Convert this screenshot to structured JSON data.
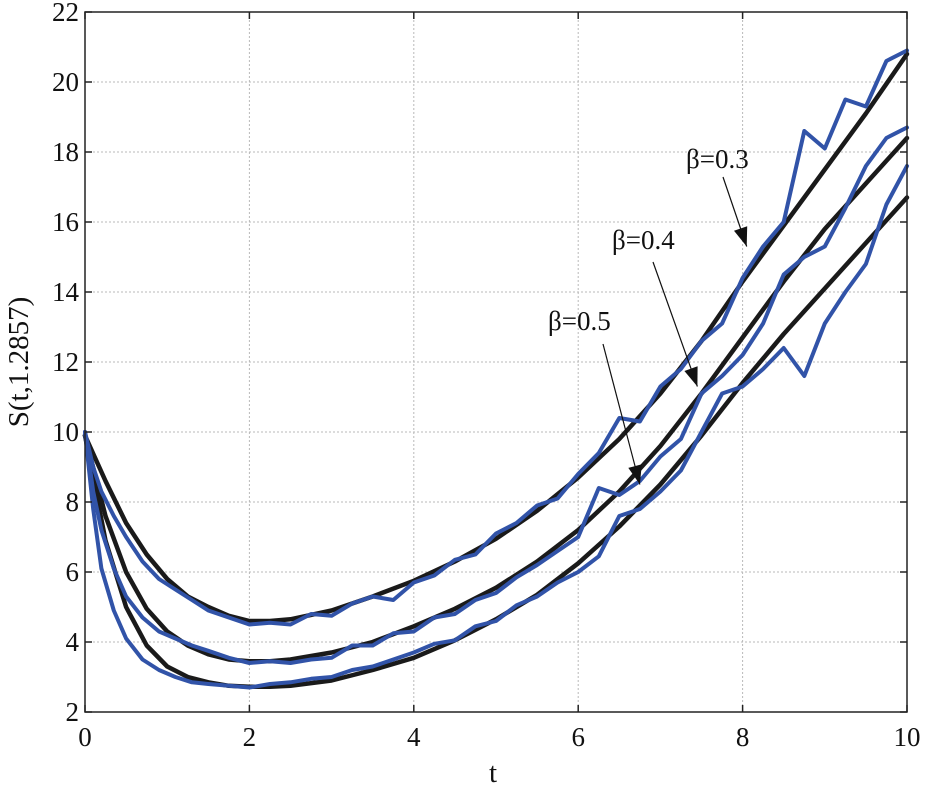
{
  "chart_data": {
    "type": "line",
    "title": "",
    "xlabel": "t",
    "ylabel": "S(t,1.2857)",
    "xlim": [
      0,
      10
    ],
    "ylim": [
      2,
      22
    ],
    "xticks": [
      0,
      2,
      4,
      6,
      8,
      10
    ],
    "yticks": [
      2,
      4,
      6,
      8,
      10,
      12,
      14,
      16,
      18,
      20,
      22
    ],
    "grid": true,
    "colors": {
      "exact": "#1a1a1a",
      "simulated": "#3153a8"
    },
    "series": [
      {
        "kind": "exact",
        "x": [
          0,
          0.25,
          0.5,
          0.75,
          1,
          1.25,
          1.5,
          1.75,
          2,
          2.25,
          2.5,
          3,
          3.5,
          4,
          4.5,
          5,
          5.5,
          6,
          6.5,
          7,
          7.5,
          8,
          8.5,
          9,
          9.5,
          10
        ],
        "values": [
          9.9,
          8.6,
          7.4,
          6.5,
          5.8,
          5.3,
          5.0,
          4.75,
          4.6,
          4.6,
          4.65,
          4.9,
          5.3,
          5.75,
          6.3,
          6.95,
          7.75,
          8.7,
          9.8,
          11.1,
          12.6,
          14.3,
          15.9,
          17.5,
          19.1,
          20.8
        ]
      },
      {
        "kind": "exact",
        "x": [
          0,
          0.25,
          0.5,
          0.75,
          1,
          1.25,
          1.5,
          1.75,
          2,
          2.25,
          2.5,
          3,
          3.5,
          4,
          4.5,
          5,
          5.5,
          6,
          6.5,
          7,
          7.5,
          8,
          8.5,
          9,
          9.5,
          10
        ],
        "values": [
          9.9,
          7.6,
          6.0,
          4.95,
          4.3,
          3.9,
          3.65,
          3.5,
          3.45,
          3.45,
          3.5,
          3.7,
          4.0,
          4.45,
          4.95,
          5.55,
          6.3,
          7.2,
          8.3,
          9.6,
          11.1,
          12.7,
          14.3,
          15.8,
          17.1,
          18.4
        ]
      },
      {
        "kind": "exact",
        "x": [
          0,
          0.25,
          0.5,
          0.75,
          1,
          1.25,
          1.5,
          1.75,
          2,
          2.25,
          2.5,
          3,
          3.5,
          4,
          4.5,
          5,
          5.5,
          6,
          6.5,
          7,
          7.5,
          8,
          8.5,
          9,
          9.5,
          10
        ],
        "values": [
          9.9,
          6.9,
          5.0,
          3.9,
          3.3,
          3.0,
          2.85,
          2.75,
          2.72,
          2.72,
          2.75,
          2.9,
          3.2,
          3.55,
          4.05,
          4.65,
          5.35,
          6.25,
          7.3,
          8.5,
          9.9,
          11.4,
          12.8,
          14.1,
          15.4,
          16.7
        ]
      },
      {
        "kind": "simulated",
        "x": [
          0,
          0.1,
          0.2,
          0.35,
          0.5,
          0.7,
          0.9,
          1.1,
          1.3,
          1.5,
          1.75,
          2,
          2.25,
          2.5,
          2.75,
          3,
          3.25,
          3.5,
          3.75,
          4,
          4.25,
          4.5,
          4.75,
          5,
          5.25,
          5.5,
          5.75,
          6,
          6.25,
          6.5,
          6.75,
          7,
          7.25,
          7.5,
          7.75,
          8,
          8.25,
          8.5,
          8.75,
          9,
          9.25,
          9.5,
          9.75,
          10
        ],
        "values": [
          10.0,
          9.0,
          8.3,
          7.6,
          7.0,
          6.3,
          5.8,
          5.5,
          5.2,
          4.9,
          4.7,
          4.5,
          4.55,
          4.5,
          4.8,
          4.75,
          5.1,
          5.3,
          5.2,
          5.7,
          5.9,
          6.35,
          6.5,
          7.1,
          7.4,
          7.9,
          8.1,
          8.8,
          9.4,
          10.4,
          10.3,
          11.3,
          11.8,
          12.6,
          13.1,
          14.4,
          15.3,
          16.0,
          18.6,
          18.1,
          19.5,
          19.3,
          20.6,
          20.9
        ]
      },
      {
        "kind": "simulated",
        "x": [
          0,
          0.1,
          0.2,
          0.35,
          0.5,
          0.7,
          0.9,
          1.1,
          1.3,
          1.5,
          1.75,
          2,
          2.25,
          2.5,
          2.75,
          3,
          3.25,
          3.5,
          3.75,
          4,
          4.25,
          4.5,
          4.75,
          5,
          5.25,
          5.5,
          5.75,
          6,
          6.25,
          6.5,
          6.75,
          7,
          7.25,
          7.5,
          7.75,
          8,
          8.25,
          8.5,
          8.75,
          9,
          9.25,
          9.5,
          9.75,
          10
        ],
        "values": [
          10.0,
          8.3,
          7.2,
          6.1,
          5.3,
          4.7,
          4.3,
          4.1,
          3.9,
          3.75,
          3.55,
          3.4,
          3.45,
          3.4,
          3.5,
          3.55,
          3.9,
          3.9,
          4.25,
          4.3,
          4.7,
          4.8,
          5.2,
          5.4,
          5.85,
          6.2,
          6.6,
          7.0,
          8.4,
          8.2,
          8.6,
          9.3,
          9.8,
          11.1,
          11.6,
          12.2,
          13.1,
          14.5,
          15.0,
          15.3,
          16.4,
          17.6,
          18.4,
          18.7
        ]
      },
      {
        "kind": "simulated",
        "x": [
          0,
          0.1,
          0.2,
          0.35,
          0.5,
          0.7,
          0.9,
          1.1,
          1.3,
          1.5,
          1.75,
          2,
          2.25,
          2.5,
          2.75,
          3,
          3.25,
          3.5,
          3.75,
          4,
          4.25,
          4.5,
          4.75,
          5,
          5.25,
          5.5,
          5.75,
          6,
          6.25,
          6.5,
          6.75,
          7,
          7.25,
          7.5,
          7.75,
          8,
          8.25,
          8.5,
          8.75,
          9,
          9.25,
          9.5,
          9.75,
          10
        ],
        "values": [
          10.0,
          7.8,
          6.1,
          4.9,
          4.1,
          3.5,
          3.2,
          3.0,
          2.85,
          2.8,
          2.75,
          2.7,
          2.8,
          2.85,
          2.95,
          3.0,
          3.2,
          3.3,
          3.5,
          3.7,
          3.95,
          4.05,
          4.45,
          4.6,
          5.05,
          5.3,
          5.7,
          6.0,
          6.45,
          7.6,
          7.8,
          8.3,
          8.9,
          10.0,
          11.1,
          11.3,
          11.8,
          12.4,
          11.6,
          13.1,
          14.0,
          14.8,
          16.5,
          17.6
        ]
      }
    ],
    "annotations": [
      {
        "text": "β=0.3",
        "target": [
          8.05,
          15.3
        ]
      },
      {
        "text": "β=0.4",
        "target": [
          7.45,
          11.3
        ]
      },
      {
        "text": "β=0.5",
        "target": [
          6.75,
          8.5
        ]
      }
    ]
  }
}
